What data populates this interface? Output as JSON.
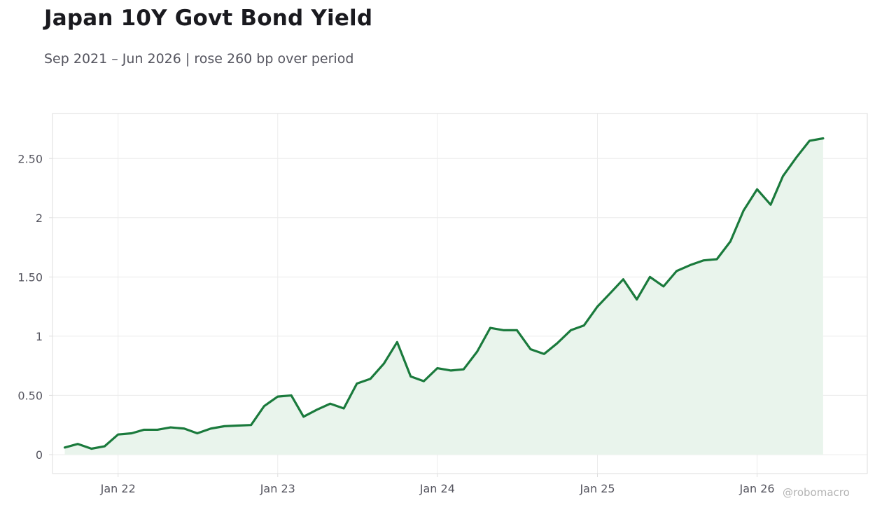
{
  "title": "Japan 10Y Govt Bond Yield",
  "subtitle": "Sep 2021 – Jun 2026 | rose 260 bp over period",
  "watermark": "@robomacro",
  "colors": {
    "line": "#1a7a3c",
    "fill": "#e9f4ec",
    "grid": "#ececec",
    "frame": "#dedede",
    "text": "#55555f"
  },
  "chart_data": {
    "type": "area",
    "title": "Japan 10Y Govt Bond Yield",
    "subtitle": "Sep 2021 – Jun 2026 | rose 260 bp over period",
    "xlabel": "",
    "ylabel": "",
    "grid": true,
    "legend": "none",
    "xlim": [
      "2021-08-04",
      "2026-09-10"
    ],
    "ylim": [
      -0.16,
      2.88
    ],
    "x_ticks": [
      {
        "label": "Jan 22",
        "date": "2022-01-01"
      },
      {
        "label": "Jan 23",
        "date": "2023-01-01"
      },
      {
        "label": "Jan 24",
        "date": "2024-01-01"
      },
      {
        "label": "Jan 25",
        "date": "2025-01-01"
      },
      {
        "label": "Jan 26",
        "date": "2026-01-01"
      }
    ],
    "y_ticks": [
      {
        "label": "0",
        "value": 0
      },
      {
        "label": "0.50",
        "value": 0.5
      },
      {
        "label": "1",
        "value": 1
      },
      {
        "label": "1.50",
        "value": 1.5
      },
      {
        "label": "2",
        "value": 2
      },
      {
        "label": "2.50",
        "value": 2.5
      }
    ],
    "series": [
      {
        "x": [
          "2021-09-01",
          "2021-10-01",
          "2021-11-01",
          "2021-12-01",
          "2022-01-01",
          "2022-02-01",
          "2022-03-01",
          "2022-04-01",
          "2022-05-01",
          "2022-06-01",
          "2022-07-01",
          "2022-08-01",
          "2022-09-01",
          "2022-10-01",
          "2022-11-01",
          "2022-12-01",
          "2023-01-01",
          "2023-02-01",
          "2023-03-01",
          "2023-04-01",
          "2023-05-01",
          "2023-06-01",
          "2023-07-01",
          "2023-08-01",
          "2023-09-01",
          "2023-10-01",
          "2023-11-01",
          "2023-12-01",
          "2024-01-01",
          "2024-02-01",
          "2024-03-01",
          "2024-04-01",
          "2024-05-01",
          "2024-06-01",
          "2024-07-01",
          "2024-08-01",
          "2024-09-01",
          "2024-10-01",
          "2024-11-01",
          "2024-12-01",
          "2025-01-01",
          "2025-02-01",
          "2025-03-01",
          "2025-04-01",
          "2025-05-01",
          "2025-06-01",
          "2025-07-01",
          "2025-08-01",
          "2025-09-01",
          "2025-10-01",
          "2025-11-01",
          "2025-12-01",
          "2026-01-01",
          "2026-02-01",
          "2026-03-01",
          "2026-04-01",
          "2026-05-01",
          "2026-06-01"
        ],
        "values": [
          0.06,
          0.09,
          0.05,
          0.07,
          0.17,
          0.18,
          0.21,
          0.21,
          0.23,
          0.22,
          0.18,
          0.22,
          0.24,
          0.245,
          0.25,
          0.41,
          0.49,
          0.5,
          0.32,
          0.38,
          0.43,
          0.39,
          0.6,
          0.64,
          0.77,
          0.95,
          0.66,
          0.62,
          0.73,
          0.71,
          0.72,
          0.87,
          1.07,
          1.05,
          1.05,
          0.89,
          0.85,
          0.94,
          1.05,
          1.09,
          1.25,
          1.37,
          1.48,
          1.31,
          1.5,
          1.42,
          1.55,
          1.6,
          1.64,
          1.65,
          1.8,
          2.06,
          2.24,
          2.11,
          2.35,
          2.51,
          2.65,
          2.67
        ]
      }
    ]
  }
}
